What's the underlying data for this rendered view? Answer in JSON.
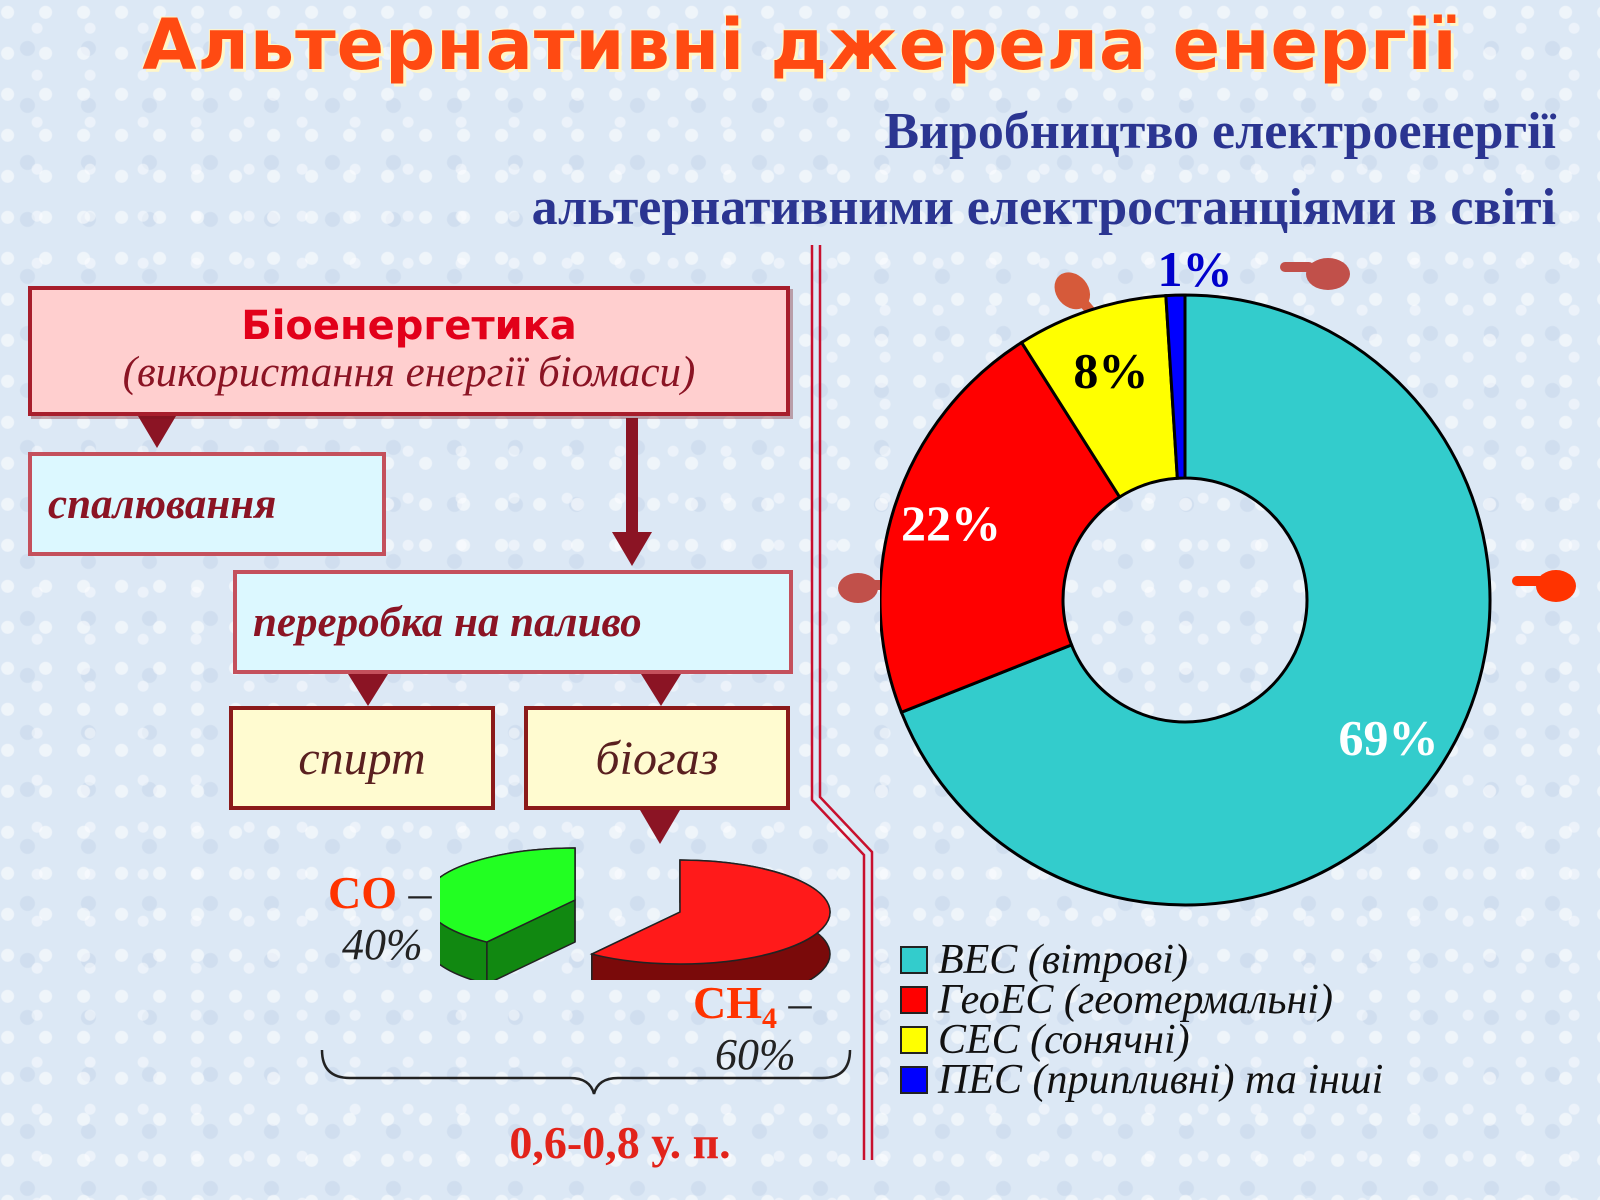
{
  "title": "Альтернативні джерела енергії",
  "subtitle_line1": "Виробництво електроенергії",
  "subtitle_line2": "альтернативними електростанціями в світі",
  "bio": {
    "title": "Біоенергетика",
    "subtitle": "(використання енергії біомаси)",
    "burning": "спалювання",
    "processing": "переробка на паливо",
    "alcohol": "спирт",
    "biogas": "біогаз"
  },
  "biogas_composition": {
    "co_name": "CO",
    "co_pct": "40%",
    "ch4_name": "CH",
    "ch4_sub": "4",
    "ch4_pct": "60%",
    "dash": "–",
    "total": "0,6-0,8 у. п."
  },
  "colors": {
    "wind": "#33cccc",
    "geo": "#ff0000",
    "solar": "#ffff00",
    "tidal": "#0000ff",
    "co": "#22ff22",
    "ch4": "#ff1a1a"
  },
  "chart_data": [
    {
      "type": "pie",
      "variant": "donut",
      "categories": [
        "ВЕС (вітрові)",
        "ГеоЕС (геотермальні)",
        "СЕС (сонячні)",
        "ПЕС (припливні) та інші"
      ],
      "values": [
        69,
        22,
        8,
        1
      ],
      "data_labels": [
        "69%",
        "22%",
        "8%",
        "1%"
      ],
      "colors": [
        "#33cccc",
        "#ff0000",
        "#ffff00",
        "#0000ff"
      ],
      "legend": "bottom"
    },
    {
      "type": "pie",
      "variant": "3d-exploded",
      "categories": [
        "CO",
        "CH4"
      ],
      "values": [
        40,
        60
      ],
      "data_labels": [
        "40%",
        "60%"
      ],
      "colors": [
        "#22ff22",
        "#ff1a1a"
      ]
    }
  ]
}
